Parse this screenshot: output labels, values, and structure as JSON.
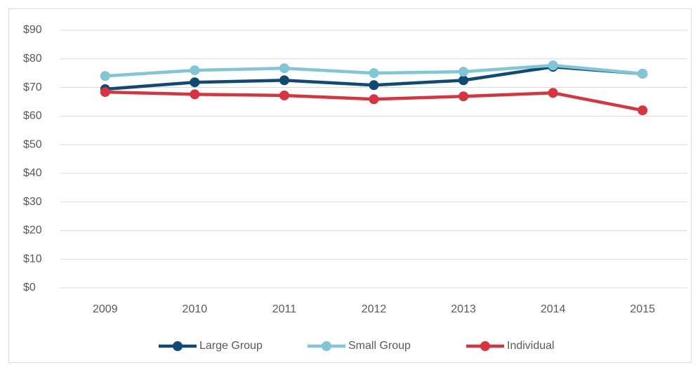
{
  "chart_data": {
    "type": "line",
    "categories": [
      "2009",
      "2010",
      "2011",
      "2012",
      "2013",
      "2014",
      "2015"
    ],
    "series": [
      {
        "name": "Large Group",
        "color": "#0f4a75",
        "values": [
          69.4,
          71.8,
          72.5,
          70.8,
          72.5,
          77.2,
          74.8
        ]
      },
      {
        "name": "Small Group",
        "color": "#7fc6d6",
        "values": [
          74.0,
          76.0,
          76.7,
          75.0,
          75.5,
          77.7,
          74.8
        ]
      },
      {
        "name": "Individual",
        "color": "#d8343f",
        "values": [
          68.4,
          67.6,
          67.2,
          65.9,
          66.9,
          68.1,
          62.0
        ]
      }
    ],
    "ylim": [
      0,
      90
    ],
    "yticks": [
      {
        "value": 0,
        "label": "$0"
      },
      {
        "value": 10,
        "label": "$10"
      },
      {
        "value": 20,
        "label": "$20"
      },
      {
        "value": 30,
        "label": "$30"
      },
      {
        "value": 40,
        "label": "$40"
      },
      {
        "value": 50,
        "label": "$50"
      },
      {
        "value": 60,
        "label": "$60"
      },
      {
        "value": 70,
        "label": "$70"
      },
      {
        "value": 80,
        "label": "$80"
      },
      {
        "value": 90,
        "label": "$90"
      }
    ],
    "grid": true,
    "legend": "bottom"
  }
}
